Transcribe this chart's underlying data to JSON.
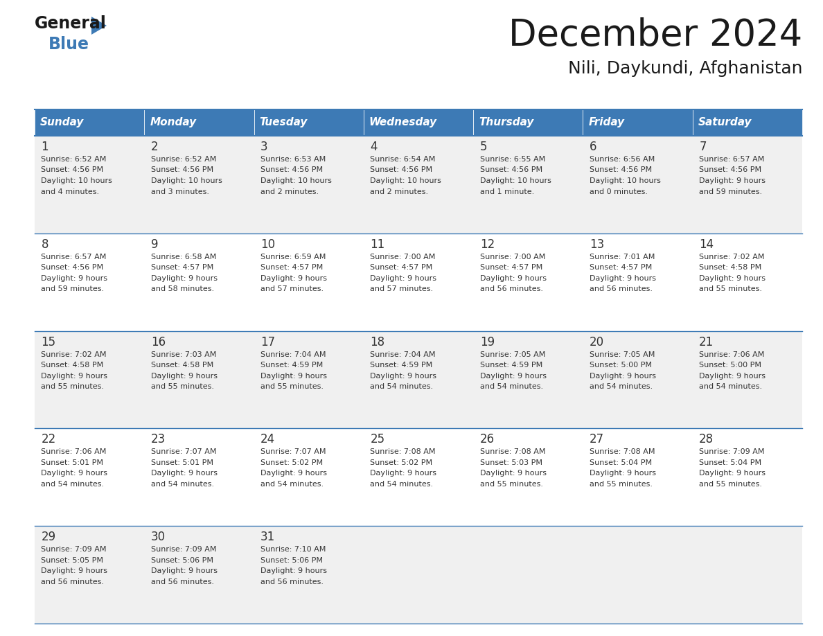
{
  "title": "December 2024",
  "subtitle": "Nili, Daykundi, Afghanistan",
  "days_of_week": [
    "Sunday",
    "Monday",
    "Tuesday",
    "Wednesday",
    "Thursday",
    "Friday",
    "Saturday"
  ],
  "header_bg_color": "#3D7AB5",
  "header_text_color": "#FFFFFF",
  "cell_bg_color_odd": "#F0F0F0",
  "cell_bg_color_even": "#FFFFFF",
  "border_color": "#3D7AB5",
  "title_color": "#1a1a1a",
  "subtitle_color": "#1a1a1a",
  "day_num_color": "#333333",
  "cell_text_color": "#333333",
  "calendar": [
    [
      {
        "day": 1,
        "sunrise": "6:52 AM",
        "sunset": "4:56 PM",
        "daylight": "10 hours and 4 minutes."
      },
      {
        "day": 2,
        "sunrise": "6:52 AM",
        "sunset": "4:56 PM",
        "daylight": "10 hours and 3 minutes."
      },
      {
        "day": 3,
        "sunrise": "6:53 AM",
        "sunset": "4:56 PM",
        "daylight": "10 hours and 2 minutes."
      },
      {
        "day": 4,
        "sunrise": "6:54 AM",
        "sunset": "4:56 PM",
        "daylight": "10 hours and 2 minutes."
      },
      {
        "day": 5,
        "sunrise": "6:55 AM",
        "sunset": "4:56 PM",
        "daylight": "10 hours and 1 minute."
      },
      {
        "day": 6,
        "sunrise": "6:56 AM",
        "sunset": "4:56 PM",
        "daylight": "10 hours and 0 minutes."
      },
      {
        "day": 7,
        "sunrise": "6:57 AM",
        "sunset": "4:56 PM",
        "daylight": "9 hours and 59 minutes."
      }
    ],
    [
      {
        "day": 8,
        "sunrise": "6:57 AM",
        "sunset": "4:56 PM",
        "daylight": "9 hours and 59 minutes."
      },
      {
        "day": 9,
        "sunrise": "6:58 AM",
        "sunset": "4:57 PM",
        "daylight": "9 hours and 58 minutes."
      },
      {
        "day": 10,
        "sunrise": "6:59 AM",
        "sunset": "4:57 PM",
        "daylight": "9 hours and 57 minutes."
      },
      {
        "day": 11,
        "sunrise": "7:00 AM",
        "sunset": "4:57 PM",
        "daylight": "9 hours and 57 minutes."
      },
      {
        "day": 12,
        "sunrise": "7:00 AM",
        "sunset": "4:57 PM",
        "daylight": "9 hours and 56 minutes."
      },
      {
        "day": 13,
        "sunrise": "7:01 AM",
        "sunset": "4:57 PM",
        "daylight": "9 hours and 56 minutes."
      },
      {
        "day": 14,
        "sunrise": "7:02 AM",
        "sunset": "4:58 PM",
        "daylight": "9 hours and 55 minutes."
      }
    ],
    [
      {
        "day": 15,
        "sunrise": "7:02 AM",
        "sunset": "4:58 PM",
        "daylight": "9 hours and 55 minutes."
      },
      {
        "day": 16,
        "sunrise": "7:03 AM",
        "sunset": "4:58 PM",
        "daylight": "9 hours and 55 minutes."
      },
      {
        "day": 17,
        "sunrise": "7:04 AM",
        "sunset": "4:59 PM",
        "daylight": "9 hours and 55 minutes."
      },
      {
        "day": 18,
        "sunrise": "7:04 AM",
        "sunset": "4:59 PM",
        "daylight": "9 hours and 54 minutes."
      },
      {
        "day": 19,
        "sunrise": "7:05 AM",
        "sunset": "4:59 PM",
        "daylight": "9 hours and 54 minutes."
      },
      {
        "day": 20,
        "sunrise": "7:05 AM",
        "sunset": "5:00 PM",
        "daylight": "9 hours and 54 minutes."
      },
      {
        "day": 21,
        "sunrise": "7:06 AM",
        "sunset": "5:00 PM",
        "daylight": "9 hours and 54 minutes."
      }
    ],
    [
      {
        "day": 22,
        "sunrise": "7:06 AM",
        "sunset": "5:01 PM",
        "daylight": "9 hours and 54 minutes."
      },
      {
        "day": 23,
        "sunrise": "7:07 AM",
        "sunset": "5:01 PM",
        "daylight": "9 hours and 54 minutes."
      },
      {
        "day": 24,
        "sunrise": "7:07 AM",
        "sunset": "5:02 PM",
        "daylight": "9 hours and 54 minutes."
      },
      {
        "day": 25,
        "sunrise": "7:08 AM",
        "sunset": "5:02 PM",
        "daylight": "9 hours and 54 minutes."
      },
      {
        "day": 26,
        "sunrise": "7:08 AM",
        "sunset": "5:03 PM",
        "daylight": "9 hours and 55 minutes."
      },
      {
        "day": 27,
        "sunrise": "7:08 AM",
        "sunset": "5:04 PM",
        "daylight": "9 hours and 55 minutes."
      },
      {
        "day": 28,
        "sunrise": "7:09 AM",
        "sunset": "5:04 PM",
        "daylight": "9 hours and 55 minutes."
      }
    ],
    [
      {
        "day": 29,
        "sunrise": "7:09 AM",
        "sunset": "5:05 PM",
        "daylight": "9 hours and 56 minutes."
      },
      {
        "day": 30,
        "sunrise": "7:09 AM",
        "sunset": "5:06 PM",
        "daylight": "9 hours and 56 minutes."
      },
      {
        "day": 31,
        "sunrise": "7:10 AM",
        "sunset": "5:06 PM",
        "daylight": "9 hours and 56 minutes."
      },
      null,
      null,
      null,
      null
    ]
  ]
}
